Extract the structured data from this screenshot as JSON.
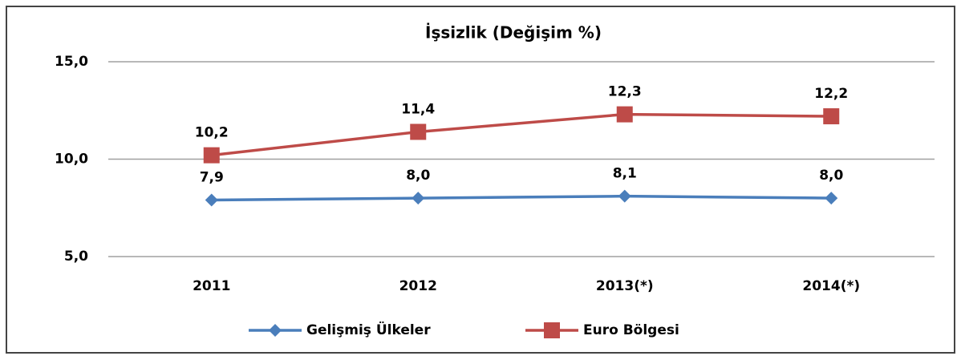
{
  "chart_data": {
    "type": "line",
    "title": "İşsizlik (Değişim %)",
    "categories": [
      "2011",
      "2012",
      "2013(*)",
      "2014(*)"
    ],
    "series": [
      {
        "name": "Gelişmiş Ülkeler",
        "color": "#4a7ebb",
        "values": [
          7.9,
          8.0,
          8.1,
          8.0
        ],
        "value_labels": [
          "7,9",
          "8,0",
          "8,1",
          "8,0"
        ]
      },
      {
        "name": "Euro Bölgesi",
        "color": "#be4b48",
        "values": [
          10.2,
          11.4,
          12.3,
          12.2
        ],
        "value_labels": [
          "10,2",
          "11,4",
          "12,3",
          "12,2"
        ]
      }
    ],
    "ylim": [
      5,
      15
    ],
    "yticks": [
      {
        "value": 5,
        "label": "5,0"
      },
      {
        "value": 10,
        "label": "10,0"
      },
      {
        "value": 15,
        "label": "15,0"
      }
    ],
    "grid": true,
    "legend": "bottom"
  }
}
